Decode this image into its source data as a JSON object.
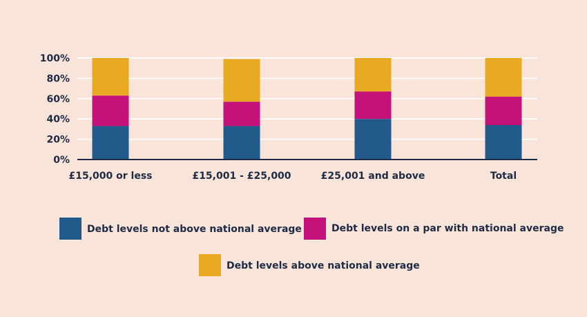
{
  "chart_data": {
    "type": "bar",
    "stacked": true,
    "categories": [
      "£15,000 or less",
      "£15,001 - £25,000",
      "£25,001 and above",
      "Total"
    ],
    "series": [
      {
        "name": "Debt levels not above national average",
        "color": "#235a8c",
        "values": [
          33,
          33,
          40,
          34
        ]
      },
      {
        "name": "Debt levels on a par with national average",
        "color": "#c4127a",
        "values": [
          30,
          24,
          27,
          28
        ]
      },
      {
        "name": "Debt levels above national average",
        "color": "#e8aa23",
        "values": [
          37,
          42,
          33,
          38
        ]
      }
    ],
    "y_ticks": [
      "0%",
      "20%",
      "40%",
      "60%",
      "80%",
      "100%"
    ],
    "ylim": [
      0,
      100
    ],
    "grid": true,
    "legend_position": "bottom",
    "title": "",
    "xlabel": "",
    "ylabel": ""
  }
}
